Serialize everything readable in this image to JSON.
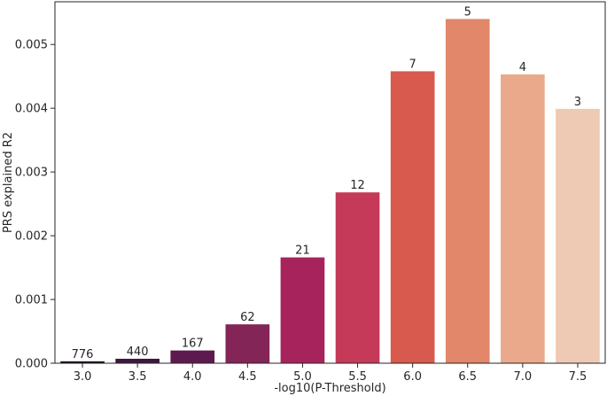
{
  "chart_data": {
    "type": "bar",
    "title": "",
    "xlabel": "-log10(P-Threshold)",
    "ylabel": "PRS explained R2",
    "categories": [
      "3.0",
      "3.5",
      "4.0",
      "4.5",
      "5.0",
      "5.5",
      "6.0",
      "6.5",
      "7.0",
      "7.5"
    ],
    "values": [
      3e-05,
      7e-05,
      0.0002,
      0.00061,
      0.00166,
      0.00268,
      0.00458,
      0.0054,
      0.00453,
      0.00399
    ],
    "bar_labels": [
      "776",
      "440",
      "167",
      "62",
      "21",
      "12",
      "7",
      "5",
      "4",
      "3"
    ],
    "colors": [
      "#1d0f22",
      "#3f1640",
      "#5e1a4e",
      "#842558",
      "#a6245b",
      "#c53a58",
      "#d85a4e",
      "#e2876a",
      "#e9a98a",
      "#eec9b3"
    ],
    "ylim": [
      0,
      0.00567
    ],
    "yticks": [
      0.0,
      0.001,
      0.002,
      0.003,
      0.004,
      0.005
    ],
    "ytick_labels": [
      "0.000",
      "0.001",
      "0.002",
      "0.003",
      "0.004",
      "0.005"
    ],
    "grid": false,
    "legend": "none"
  }
}
